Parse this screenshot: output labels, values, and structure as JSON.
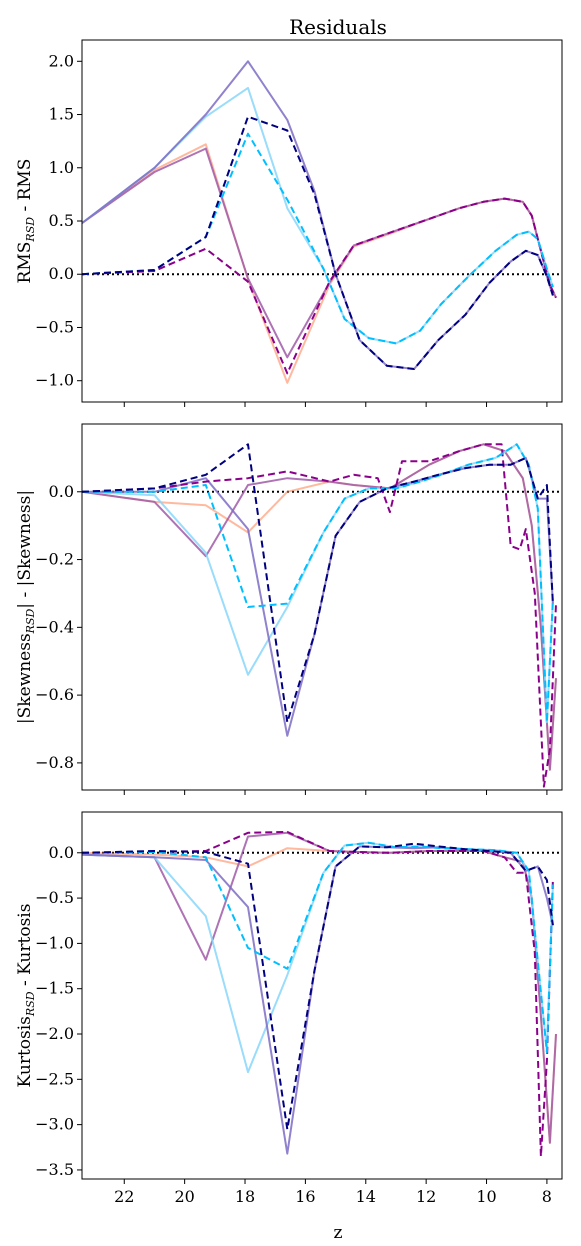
{
  "figure": {
    "title": "Residuals",
    "xlabel": "z"
  },
  "colors": {
    "s1": "#ff7f50",
    "s2": "#a05aa8",
    "s3": "#87d6fa",
    "s4": "#7c6cc4",
    "d1": "#8b008b",
    "d2": "#00bfff",
    "d3": "#000080",
    "zero_line": "#000000"
  },
  "chart_data": [
    {
      "type": "line",
      "title": "Residuals",
      "xlabel": "z",
      "ylabel_main": "RMS",
      "ylabel_sub": "RSD",
      "ylabel_tail": " - RMS",
      "xlim": [
        23.4,
        7.5
      ],
      "ylim": [
        -1.2,
        2.2
      ],
      "xticks": [
        22,
        20,
        18,
        16,
        14,
        12,
        10,
        8
      ],
      "yticks": [
        -1.0,
        -0.5,
        0.0,
        0.5,
        1.0,
        1.5,
        2.0
      ],
      "ytick_labels": [
        "−1.0",
        "−0.5",
        "0.0",
        "0.5",
        "1.0",
        "1.5",
        "2.0"
      ],
      "series": [
        {
          "color_key": "s1",
          "dashed": false,
          "alpha": 0.55,
          "x": [
            23.4,
            21.0,
            19.3,
            17.9,
            16.6,
            15.2,
            14.4,
            13.2,
            11.9,
            10.9,
            10.1,
            9.4,
            8.8,
            8.5,
            8.2,
            7.9,
            7.7
          ],
          "y": [
            0.48,
            0.98,
            1.22,
            -0.05,
            -1.02,
            -0.1,
            0.26,
            0.38,
            0.52,
            0.62,
            0.68,
            0.71,
            0.68,
            0.55,
            0.22,
            -0.1,
            -0.22
          ]
        },
        {
          "color_key": "s2",
          "dashed": false,
          "alpha": 0.85,
          "x": [
            23.4,
            21.0,
            19.3,
            17.9,
            16.6,
            15.2,
            14.4,
            13.2,
            11.9,
            10.9,
            10.1,
            9.4,
            8.8,
            8.5,
            8.2,
            7.9,
            7.7
          ],
          "y": [
            0.48,
            0.96,
            1.18,
            -0.04,
            -0.78,
            -0.08,
            0.27,
            0.39,
            0.52,
            0.62,
            0.68,
            0.71,
            0.68,
            0.55,
            0.22,
            -0.1,
            -0.22
          ]
        },
        {
          "color_key": "s3",
          "dashed": false,
          "alpha": 0.85,
          "x": [
            23.4,
            21.0,
            19.3,
            17.9,
            16.6,
            15.4,
            14.7,
            13.9,
            13.0,
            12.2,
            11.5,
            10.6,
            9.7,
            9.0,
            8.6,
            8.3,
            8.0,
            7.8
          ],
          "y": [
            0.48,
            1.0,
            1.48,
            1.75,
            0.62,
            0.05,
            -0.42,
            -0.6,
            -0.65,
            -0.53,
            -0.28,
            -0.02,
            0.22,
            0.37,
            0.4,
            0.33,
            0.05,
            -0.12
          ]
        },
        {
          "color_key": "s4",
          "dashed": false,
          "alpha": 0.85,
          "x": [
            23.4,
            21.0,
            19.3,
            17.9,
            16.6,
            15.7,
            15.0,
            14.2,
            13.3,
            12.4,
            11.6,
            10.7,
            9.9,
            9.2,
            8.7,
            8.3,
            8.0,
            7.8
          ],
          "y": [
            0.48,
            1.0,
            1.5,
            2.0,
            1.45,
            0.78,
            0.0,
            -0.62,
            -0.86,
            -0.89,
            -0.62,
            -0.38,
            -0.08,
            0.12,
            0.22,
            0.18,
            -0.02,
            -0.2
          ]
        },
        {
          "color_key": "d1",
          "dashed": true,
          "alpha": 1.0,
          "x": [
            23.4,
            21.0,
            19.3,
            17.9,
            16.6,
            15.2,
            14.4,
            13.2,
            11.9,
            10.9,
            10.1,
            9.4,
            8.8,
            8.5,
            8.2,
            7.9,
            7.7
          ],
          "y": [
            0.0,
            0.03,
            0.24,
            -0.07,
            -0.93,
            -0.07,
            0.27,
            0.39,
            0.52,
            0.62,
            0.68,
            0.71,
            0.68,
            0.55,
            0.22,
            -0.1,
            -0.22
          ]
        },
        {
          "color_key": "d2",
          "dashed": true,
          "alpha": 1.0,
          "x": [
            23.4,
            21.0,
            19.3,
            17.9,
            16.6,
            15.4,
            14.7,
            13.9,
            13.0,
            12.2,
            11.5,
            10.6,
            9.7,
            9.0,
            8.6,
            8.3,
            8.0,
            7.8
          ],
          "y": [
            0.0,
            0.04,
            0.35,
            1.32,
            0.7,
            0.05,
            -0.42,
            -0.6,
            -0.65,
            -0.53,
            -0.28,
            -0.02,
            0.22,
            0.37,
            0.4,
            0.33,
            0.05,
            -0.12
          ]
        },
        {
          "color_key": "d3",
          "dashed": true,
          "alpha": 1.0,
          "x": [
            23.4,
            21.0,
            19.3,
            17.9,
            16.6,
            15.7,
            15.0,
            14.2,
            13.3,
            12.4,
            11.6,
            10.7,
            9.9,
            9.2,
            8.7,
            8.3,
            8.0,
            7.8
          ],
          "y": [
            0.0,
            0.04,
            0.35,
            1.48,
            1.35,
            0.75,
            0.0,
            -0.62,
            -0.86,
            -0.89,
            -0.62,
            -0.38,
            -0.08,
            0.12,
            0.22,
            0.18,
            -0.02,
            -0.2
          ]
        }
      ]
    },
    {
      "type": "line",
      "ylabel_main": "|Skewness",
      "ylabel_sub": "RSD",
      "ylabel_tail": "| - |Skewness|",
      "xlim": [
        23.4,
        7.5
      ],
      "ylim": [
        -0.88,
        0.2
      ],
      "xticks": [
        22,
        20,
        18,
        16,
        14,
        12,
        10,
        8
      ],
      "yticks": [
        -0.8,
        -0.6,
        -0.4,
        -0.2,
        0.0
      ],
      "ytick_labels": [
        "−0.8",
        "−0.6",
        "−0.4",
        "−0.2",
        "0.0"
      ],
      "series": [
        {
          "color_key": "s1",
          "dashed": false,
          "alpha": 0.55,
          "x": [
            23.4,
            21.0,
            19.3,
            17.9,
            16.6,
            15.2,
            14.4,
            13.2,
            11.9,
            10.9,
            10.1,
            9.4,
            8.8,
            8.5,
            8.2,
            7.9,
            7.7
          ],
          "y": [
            0.0,
            -0.03,
            -0.04,
            -0.12,
            0.0,
            0.03,
            0.02,
            0.01,
            0.08,
            0.12,
            0.14,
            0.12,
            0.04,
            -0.1,
            -0.4,
            -0.82,
            -0.55
          ]
        },
        {
          "color_key": "s2",
          "dashed": false,
          "alpha": 0.85,
          "x": [
            23.4,
            21.0,
            19.3,
            17.9,
            16.6,
            15.2,
            14.4,
            13.2,
            11.9,
            10.9,
            10.1,
            9.4,
            8.8,
            8.5,
            8.2,
            7.9,
            7.7
          ],
          "y": [
            0.0,
            -0.03,
            -0.19,
            0.02,
            0.04,
            0.03,
            0.02,
            0.01,
            0.08,
            0.12,
            0.14,
            0.12,
            0.04,
            -0.1,
            -0.4,
            -0.82,
            -0.55
          ]
        },
        {
          "color_key": "s3",
          "dashed": false,
          "alpha": 0.85,
          "x": [
            23.4,
            21.0,
            19.3,
            17.9,
            16.6,
            15.4,
            14.7,
            13.9,
            13.0,
            12.2,
            11.5,
            10.6,
            9.7,
            9.0,
            8.6,
            8.3,
            8.0,
            7.8
          ],
          "y": [
            0.0,
            -0.01,
            -0.18,
            -0.54,
            -0.34,
            -0.12,
            -0.02,
            0.01,
            0.01,
            0.03,
            0.05,
            0.08,
            0.1,
            0.14,
            0.08,
            -0.05,
            -0.68,
            -0.32
          ]
        },
        {
          "color_key": "s4",
          "dashed": false,
          "alpha": 0.85,
          "x": [
            23.4,
            21.0,
            19.3,
            17.9,
            16.6,
            15.7,
            15.0,
            14.2,
            13.3,
            12.4,
            11.6,
            10.7,
            9.9,
            9.2,
            8.7,
            8.3,
            8.0,
            7.8
          ],
          "y": [
            0.0,
            0.0,
            0.04,
            -0.11,
            -0.72,
            -0.42,
            -0.13,
            -0.03,
            0.01,
            0.03,
            0.05,
            0.07,
            0.08,
            0.08,
            0.1,
            -0.02,
            -0.02,
            -0.33
          ]
        },
        {
          "color_key": "d1",
          "dashed": true,
          "alpha": 1.0,
          "x": [
            23.4,
            21.0,
            19.3,
            17.9,
            16.6,
            15.2,
            14.4,
            13.6,
            13.2,
            12.8,
            11.9,
            10.9,
            10.1,
            9.5,
            9.2,
            8.9,
            8.7,
            8.4,
            8.1,
            7.9,
            7.7
          ],
          "y": [
            0.0,
            0.01,
            0.03,
            0.04,
            0.06,
            0.03,
            0.05,
            0.04,
            -0.06,
            0.09,
            0.09,
            0.12,
            0.14,
            0.14,
            -0.16,
            -0.17,
            -0.11,
            -0.3,
            -0.87,
            -0.76,
            -0.33
          ]
        },
        {
          "color_key": "d2",
          "dashed": true,
          "alpha": 1.0,
          "x": [
            23.4,
            21.0,
            19.3,
            17.9,
            16.6,
            15.4,
            14.7,
            13.9,
            13.0,
            12.2,
            11.5,
            10.6,
            9.7,
            9.0,
            8.6,
            8.3,
            8.0,
            7.8
          ],
          "y": [
            0.0,
            0.0,
            0.02,
            -0.34,
            -0.33,
            -0.12,
            -0.02,
            0.01,
            0.01,
            0.03,
            0.05,
            0.08,
            0.1,
            0.14,
            0.08,
            -0.05,
            -0.68,
            -0.32
          ]
        },
        {
          "color_key": "d3",
          "dashed": true,
          "alpha": 1.0,
          "x": [
            23.4,
            21.0,
            19.3,
            17.9,
            16.6,
            15.7,
            15.0,
            14.2,
            13.3,
            12.4,
            11.6,
            10.7,
            9.9,
            9.2,
            8.7,
            8.3,
            8.0,
            7.8
          ],
          "y": [
            0.0,
            0.01,
            0.05,
            0.14,
            -0.68,
            -0.42,
            -0.13,
            -0.03,
            0.01,
            0.03,
            0.05,
            0.07,
            0.08,
            0.08,
            0.1,
            -0.02,
            0.02,
            -0.33
          ]
        }
      ]
    },
    {
      "type": "line",
      "ylabel_main": "Kurtosis",
      "ylabel_sub": "RSD",
      "ylabel_tail": " - Kurtosis",
      "xlim": [
        23.4,
        7.5
      ],
      "ylim": [
        -3.6,
        0.45
      ],
      "xticks": [
        22,
        20,
        18,
        16,
        14,
        12,
        10,
        8
      ],
      "yticks": [
        -3.5,
        -3.0,
        -2.5,
        -2.0,
        -1.5,
        -1.0,
        -0.5,
        0.0
      ],
      "ytick_labels": [
        "−3.5",
        "−3.0",
        "−2.5",
        "−2.0",
        "−1.5",
        "−1.0",
        "−0.5",
        "0.0"
      ],
      "series": [
        {
          "color_key": "s1",
          "dashed": false,
          "alpha": 0.55,
          "x": [
            23.4,
            21.0,
            19.3,
            17.9,
            16.6,
            15.2,
            14.4,
            13.2,
            11.9,
            10.9,
            10.1,
            9.4,
            8.8,
            8.5,
            8.2,
            7.9,
            7.7
          ],
          "y": [
            0.0,
            -0.02,
            -0.05,
            -0.15,
            0.05,
            0.02,
            0.01,
            0.0,
            0.02,
            0.02,
            0.02,
            -0.05,
            -0.1,
            -0.5,
            -1.8,
            -3.2,
            -2.0
          ]
        },
        {
          "color_key": "s2",
          "dashed": false,
          "alpha": 0.85,
          "x": [
            23.4,
            21.0,
            19.3,
            17.9,
            16.6,
            15.2,
            14.4,
            13.2,
            11.9,
            10.9,
            10.1,
            9.4,
            8.8,
            8.5,
            8.2,
            7.9,
            7.7
          ],
          "y": [
            -0.02,
            -0.05,
            -1.18,
            0.18,
            0.22,
            0.02,
            0.01,
            0.0,
            0.02,
            0.02,
            0.02,
            -0.05,
            -0.1,
            -0.5,
            -1.8,
            -3.2,
            -2.0
          ]
        },
        {
          "color_key": "s3",
          "dashed": false,
          "alpha": 0.85,
          "x": [
            23.4,
            21.0,
            19.3,
            17.9,
            16.6,
            15.4,
            14.7,
            13.9,
            13.0,
            12.2,
            11.5,
            10.6,
            9.7,
            9.0,
            8.6,
            8.3,
            8.0,
            7.8
          ],
          "y": [
            -0.02,
            -0.05,
            -0.7,
            -2.42,
            -1.35,
            -0.22,
            0.08,
            0.11,
            0.06,
            0.07,
            0.05,
            0.04,
            0.03,
            0.0,
            -0.2,
            -1.2,
            -2.2,
            -0.35
          ]
        },
        {
          "color_key": "s4",
          "dashed": false,
          "alpha": 0.85,
          "x": [
            23.4,
            21.0,
            19.3,
            17.9,
            16.6,
            15.7,
            15.0,
            14.2,
            13.3,
            12.4,
            11.6,
            10.7,
            9.9,
            9.2,
            8.7,
            8.3,
            8.0,
            7.8
          ],
          "y": [
            -0.02,
            -0.05,
            -0.08,
            -0.6,
            -3.32,
            -1.3,
            -0.15,
            0.07,
            0.06,
            0.05,
            0.06,
            0.04,
            0.02,
            0.0,
            -0.2,
            -0.15,
            -0.5,
            -0.8
          ]
        },
        {
          "color_key": "d1",
          "dashed": true,
          "alpha": 1.0,
          "x": [
            23.4,
            21.0,
            19.3,
            17.9,
            16.6,
            15.2,
            14.4,
            13.2,
            11.9,
            10.9,
            10.1,
            9.4,
            9.0,
            8.7,
            8.4,
            8.2,
            8.0,
            7.8
          ],
          "y": [
            0.0,
            0.01,
            0.02,
            0.22,
            0.23,
            0.02,
            0.01,
            0.0,
            0.02,
            0.02,
            0.02,
            -0.05,
            -0.22,
            -0.22,
            -1.1,
            -3.35,
            -2.3,
            -0.3
          ]
        },
        {
          "color_key": "d2",
          "dashed": true,
          "alpha": 1.0,
          "x": [
            23.4,
            21.0,
            19.3,
            17.9,
            16.6,
            15.4,
            14.7,
            13.9,
            13.0,
            12.2,
            11.5,
            10.6,
            9.7,
            9.0,
            8.6,
            8.3,
            8.0,
            7.8
          ],
          "y": [
            0.0,
            0.01,
            -0.05,
            -1.05,
            -1.28,
            -0.22,
            0.08,
            0.11,
            0.06,
            0.07,
            0.05,
            0.04,
            0.03,
            0.0,
            -0.2,
            -1.2,
            -2.2,
            -0.35
          ]
        },
        {
          "color_key": "d3",
          "dashed": true,
          "alpha": 1.0,
          "x": [
            23.4,
            21.0,
            19.3,
            17.9,
            16.6,
            15.7,
            15.0,
            14.2,
            13.3,
            12.4,
            11.6,
            10.7,
            9.9,
            9.2,
            8.7,
            8.3,
            8.0,
            7.8
          ],
          "y": [
            0.0,
            0.02,
            0.01,
            -0.12,
            -3.05,
            -1.3,
            -0.15,
            0.07,
            0.06,
            0.1,
            0.07,
            0.04,
            0.02,
            0.0,
            -0.2,
            -0.15,
            -0.3,
            -0.8
          ]
        }
      ]
    }
  ]
}
